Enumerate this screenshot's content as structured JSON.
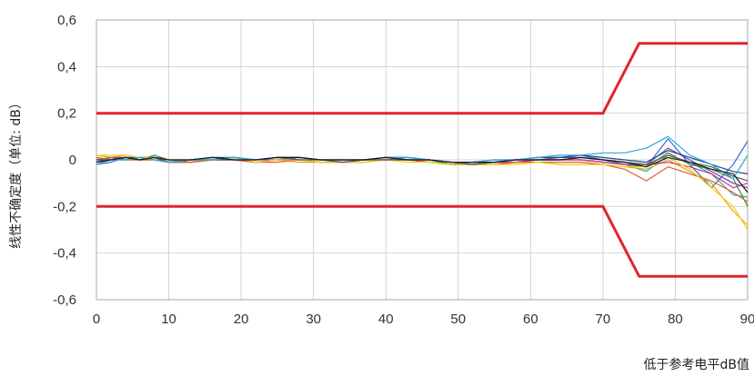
{
  "chart_data": {
    "type": "line",
    "title": "",
    "xlabel": "低于参考电平dB值",
    "ylabel": "线性不确定度（单位: dB）",
    "xlim": [
      0,
      90
    ],
    "ylim": [
      -0.6,
      0.6
    ],
    "x_ticks": [
      "0",
      "10",
      "20",
      "30",
      "40",
      "50",
      "60",
      "70",
      "80",
      "90"
    ],
    "y_ticks": [
      "0,6",
      "0,4",
      "0,2",
      "0",
      "-0,2",
      "-0,4",
      "-0,6"
    ],
    "grid": true,
    "colors": {
      "limit": "#e0252a",
      "grid": "#d4d4d4",
      "frame": "#a8a8a8",
      "series": [
        "#2f6fd6",
        "#19b3a6",
        "#e8a317",
        "#7a3fb5",
        "#3a8f2f",
        "#d62d8b",
        "#1f4a8a",
        "#e35d2a",
        "#f2d219",
        "#5a5a5a",
        "#2aa9e0",
        "#1a1a1a"
      ]
    },
    "limit_lines": [
      {
        "x": [
          0,
          70,
          75,
          90
        ],
        "y": [
          0.2,
          0.2,
          0.5,
          0.5
        ]
      },
      {
        "x": [
          0,
          70,
          75,
          90
        ],
        "y": [
          -0.2,
          -0.2,
          -0.5,
          -0.5
        ]
      }
    ],
    "series": [
      {
        "x": [
          0,
          2,
          4,
          6,
          8,
          10,
          13,
          16,
          19,
          22,
          25,
          28,
          31,
          34,
          37,
          40,
          43,
          46,
          49,
          52,
          55,
          58,
          61,
          64,
          67,
          70,
          73,
          76,
          79,
          82,
          85,
          88,
          90
        ],
        "y": [
          -0.02,
          -0.01,
          0.01,
          0.0,
          0.01,
          -0.01,
          -0.01,
          0.0,
          0.01,
          0.0,
          0.01,
          0.01,
          0.0,
          -0.01,
          0.0,
          0.01,
          0.01,
          0.0,
          -0.02,
          -0.02,
          -0.01,
          0.0,
          0.01,
          0.01,
          0.02,
          0.0,
          -0.02,
          -0.03,
          0.09,
          -0.02,
          -0.12,
          -0.02,
          0.08
        ]
      },
      {
        "x": [
          0,
          2,
          4,
          6,
          8,
          10,
          13,
          16,
          19,
          22,
          25,
          28,
          31,
          34,
          37,
          40,
          43,
          46,
          49,
          52,
          55,
          58,
          61,
          64,
          67,
          70,
          73,
          76,
          79,
          82,
          85,
          88,
          90
        ],
        "y": [
          0.01,
          0.0,
          0.01,
          0.0,
          0.01,
          -0.01,
          0.0,
          0.0,
          0.01,
          0.0,
          0.01,
          0.0,
          -0.01,
          -0.01,
          0.0,
          0.0,
          0.01,
          0.0,
          -0.02,
          -0.02,
          -0.01,
          -0.01,
          0.0,
          0.0,
          0.0,
          -0.01,
          -0.02,
          -0.05,
          0.02,
          -0.01,
          -0.06,
          -0.15,
          -0.16
        ]
      },
      {
        "x": [
          0,
          2,
          4,
          6,
          8,
          10,
          13,
          16,
          19,
          22,
          25,
          28,
          31,
          34,
          37,
          40,
          43,
          46,
          49,
          52,
          55,
          58,
          61,
          64,
          67,
          70,
          73,
          76,
          79,
          82,
          85,
          88,
          90
        ],
        "y": [
          0.02,
          0.01,
          0.02,
          0.01,
          0.0,
          -0.01,
          0.0,
          0.01,
          0.0,
          -0.01,
          0.0,
          -0.01,
          -0.01,
          -0.01,
          -0.01,
          0.0,
          0.0,
          -0.01,
          -0.02,
          -0.02,
          -0.02,
          -0.01,
          -0.01,
          -0.02,
          -0.02,
          -0.02,
          -0.03,
          -0.04,
          0.0,
          -0.05,
          -0.1,
          -0.22,
          -0.28
        ]
      },
      {
        "x": [
          0,
          2,
          4,
          6,
          8,
          10,
          13,
          16,
          19,
          22,
          25,
          28,
          31,
          34,
          37,
          40,
          43,
          46,
          49,
          52,
          55,
          58,
          61,
          64,
          67,
          70,
          73,
          76,
          79,
          82,
          85,
          88,
          90
        ],
        "y": [
          -0.01,
          0.0,
          0.0,
          0.01,
          0.01,
          -0.01,
          0.0,
          0.0,
          0.01,
          0.0,
          0.0,
          0.01,
          0.0,
          0.0,
          0.0,
          0.01,
          0.0,
          0.0,
          -0.01,
          -0.01,
          -0.01,
          0.0,
          0.0,
          0.01,
          0.01,
          0.0,
          -0.01,
          -0.02,
          0.05,
          0.0,
          -0.05,
          -0.1,
          -0.12
        ]
      },
      {
        "x": [
          0,
          2,
          4,
          6,
          8,
          10,
          13,
          16,
          19,
          22,
          25,
          28,
          31,
          34,
          37,
          40,
          43,
          46,
          49,
          52,
          55,
          58,
          61,
          64,
          67,
          70,
          73,
          76,
          79,
          82,
          85,
          88,
          90
        ],
        "y": [
          0.0,
          0.01,
          0.0,
          0.0,
          0.02,
          0.0,
          -0.01,
          0.0,
          0.01,
          0.0,
          0.01,
          0.0,
          -0.01,
          -0.01,
          0.0,
          0.0,
          0.0,
          0.0,
          -0.02,
          -0.01,
          -0.01,
          -0.01,
          0.0,
          0.0,
          0.0,
          -0.01,
          -0.02,
          -0.03,
          0.03,
          -0.02,
          -0.04,
          -0.08,
          -0.2
        ]
      },
      {
        "x": [
          0,
          2,
          4,
          6,
          8,
          10,
          13,
          16,
          19,
          22,
          25,
          28,
          31,
          34,
          37,
          40,
          43,
          46,
          49,
          52,
          55,
          58,
          61,
          64,
          67,
          70,
          73,
          76,
          79,
          82,
          85,
          88,
          90
        ],
        "y": [
          -0.01,
          0.01,
          0.01,
          0.0,
          0.0,
          -0.01,
          -0.01,
          0.0,
          0.0,
          -0.01,
          0.0,
          0.0,
          0.0,
          -0.01,
          0.0,
          0.0,
          0.0,
          -0.01,
          -0.02,
          -0.02,
          -0.01,
          -0.01,
          0.0,
          0.0,
          0.0,
          -0.01,
          -0.02,
          -0.02,
          -0.01,
          -0.03,
          -0.06,
          -0.12,
          -0.1
        ]
      },
      {
        "x": [
          0,
          2,
          4,
          6,
          8,
          10,
          13,
          16,
          19,
          22,
          25,
          28,
          31,
          34,
          37,
          40,
          43,
          46,
          49,
          52,
          55,
          58,
          61,
          64,
          67,
          70,
          73,
          76,
          79,
          82,
          85,
          88,
          90
        ],
        "y": [
          0.0,
          0.0,
          0.01,
          0.01,
          0.01,
          0.0,
          0.0,
          0.01,
          0.01,
          0.0,
          0.01,
          0.01,
          0.0,
          0.0,
          0.0,
          0.01,
          0.01,
          0.0,
          -0.01,
          -0.01,
          0.0,
          0.0,
          0.01,
          0.01,
          0.02,
          0.01,
          0.0,
          -0.01,
          0.04,
          0.01,
          -0.02,
          -0.05,
          -0.06
        ]
      },
      {
        "x": [
          0,
          2,
          4,
          6,
          8,
          10,
          13,
          16,
          19,
          22,
          25,
          28,
          31,
          34,
          37,
          40,
          43,
          46,
          49,
          52,
          55,
          58,
          61,
          64,
          67,
          70,
          73,
          76,
          79,
          82,
          85,
          88,
          90
        ],
        "y": [
          0.01,
          0.0,
          0.0,
          0.0,
          0.0,
          -0.01,
          -0.01,
          0.0,
          0.0,
          -0.01,
          -0.01,
          0.0,
          -0.01,
          -0.01,
          -0.01,
          0.0,
          0.0,
          -0.01,
          -0.02,
          -0.02,
          -0.02,
          -0.01,
          -0.01,
          -0.01,
          -0.01,
          -0.02,
          -0.04,
          -0.09,
          -0.03,
          -0.06,
          -0.09,
          -0.14,
          -0.18
        ]
      },
      {
        "x": [
          0,
          2,
          4,
          6,
          8,
          10,
          13,
          16,
          19,
          22,
          25,
          28,
          31,
          34,
          37,
          40,
          43,
          46,
          49,
          52,
          55,
          58,
          61,
          64,
          67,
          70,
          73,
          76,
          79,
          82,
          85,
          88,
          90
        ],
        "y": [
          0.02,
          0.02,
          0.02,
          0.01,
          0.01,
          0.0,
          0.0,
          0.0,
          0.01,
          -0.01,
          0.0,
          0.0,
          -0.01,
          -0.01,
          -0.01,
          0.0,
          -0.01,
          -0.01,
          -0.02,
          -0.02,
          -0.02,
          -0.02,
          -0.01,
          -0.02,
          -0.02,
          -0.02,
          -0.03,
          -0.03,
          0.01,
          -0.04,
          -0.12,
          -0.2,
          -0.3
        ]
      },
      {
        "x": [
          0,
          2,
          4,
          6,
          8,
          10,
          13,
          16,
          19,
          22,
          25,
          28,
          31,
          34,
          37,
          40,
          43,
          46,
          49,
          52,
          55,
          58,
          61,
          64,
          67,
          70,
          73,
          76,
          79,
          82,
          85,
          88,
          90
        ],
        "y": [
          0.0,
          0.0,
          0.01,
          0.0,
          0.01,
          -0.01,
          0.0,
          0.0,
          0.0,
          0.0,
          0.01,
          0.0,
          0.0,
          -0.01,
          0.0,
          0.0,
          0.0,
          0.0,
          -0.01,
          -0.02,
          -0.01,
          0.0,
          0.0,
          0.0,
          0.01,
          0.0,
          -0.01,
          -0.02,
          0.02,
          -0.01,
          -0.03,
          -0.07,
          -0.09
        ]
      },
      {
        "x": [
          0,
          2,
          4,
          6,
          8,
          10,
          13,
          16,
          19,
          22,
          25,
          28,
          31,
          34,
          37,
          40,
          43,
          46,
          49,
          52,
          55,
          58,
          61,
          64,
          67,
          70,
          73,
          76,
          79,
          82,
          85,
          88,
          90
        ],
        "y": [
          -0.02,
          0.0,
          0.0,
          0.01,
          0.0,
          -0.01,
          0.0,
          0.0,
          0.01,
          0.0,
          0.01,
          0.01,
          0.0,
          0.0,
          0.0,
          0.01,
          0.01,
          0.0,
          -0.01,
          -0.01,
          0.0,
          0.0,
          0.01,
          0.02,
          0.02,
          0.03,
          0.03,
          0.05,
          0.1,
          0.02,
          -0.02,
          -0.08,
          0.02
        ]
      },
      {
        "x": [
          0,
          2,
          4,
          6,
          8,
          10,
          13,
          16,
          19,
          22,
          25,
          28,
          31,
          34,
          37,
          40,
          43,
          46,
          49,
          52,
          55,
          58,
          61,
          64,
          67,
          70,
          73,
          76,
          79,
          82,
          85,
          88,
          90
        ],
        "y": [
          -0.01,
          0.0,
          0.01,
          0.0,
          0.01,
          0.0,
          0.0,
          0.01,
          0.0,
          0.0,
          0.01,
          0.01,
          0.0,
          0.0,
          0.0,
          0.01,
          0.0,
          0.0,
          -0.01,
          -0.01,
          -0.01,
          0.0,
          0.0,
          0.0,
          0.01,
          0.0,
          -0.01,
          -0.03,
          0.01,
          -0.01,
          -0.04,
          -0.06,
          -0.14
        ]
      }
    ]
  }
}
